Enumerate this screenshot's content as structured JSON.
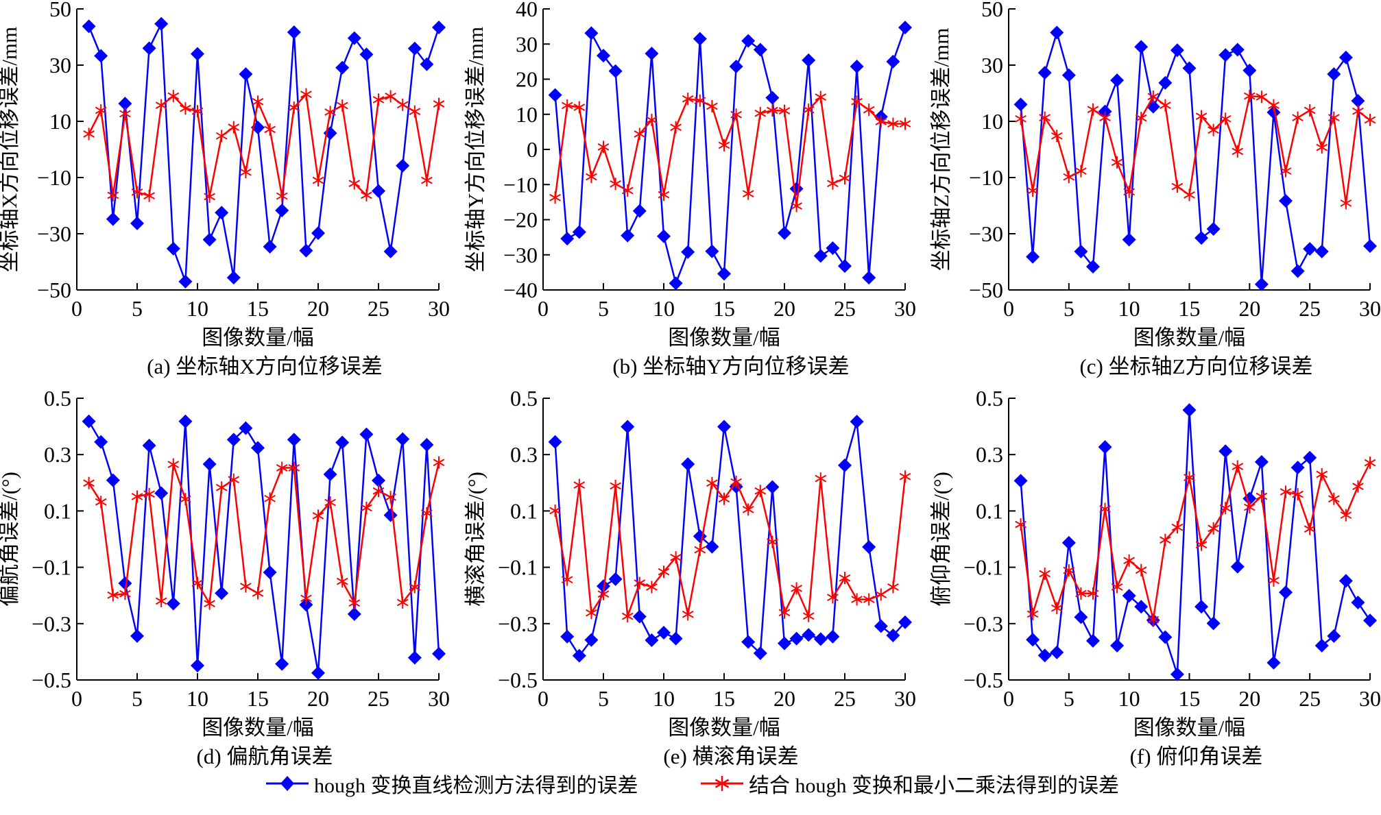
{
  "legend": {
    "series": [
      {
        "name": "hough 变换直线检测方法得到的误差",
        "color": "#0000ff",
        "marker": "diamond"
      },
      {
        "name": "结合 hough 变换和最小二乘法得到的误差",
        "color": "#ff0000",
        "marker": "asterisk"
      }
    ]
  },
  "chart_data": [
    {
      "type": "line",
      "caption": "(a) 坐标轴X方向位移误差",
      "xlabel": "图像数量/幅",
      "ylabel": "坐标轴X方向位移误差/mm",
      "xlim": [
        0,
        30
      ],
      "ylim": [
        -50,
        50
      ],
      "xticks": [
        "0",
        "5",
        "10",
        "15",
        "20",
        "25",
        "30"
      ],
      "yticks": [
        "50",
        "30",
        "10",
        "−10",
        "−30",
        "−50"
      ],
      "ytick_values": [
        50,
        30,
        10,
        -10,
        -30,
        -50
      ],
      "x": [
        1,
        2,
        3,
        4,
        5,
        6,
        7,
        8,
        9,
        10,
        11,
        12,
        13,
        14,
        15,
        16,
        17,
        18,
        19,
        20,
        21,
        22,
        23,
        24,
        25,
        26,
        27,
        28,
        29,
        30
      ],
      "series": [
        {
          "name": "hough 变换直线检测方法得到的误差",
          "values": [
            43.8,
            33.3,
            -24.8,
            16.3,
            -26.3,
            36.0,
            44.7,
            -35.3,
            -47.0,
            34.0,
            -32.1,
            -22.5,
            -45.6,
            26.8,
            7.8,
            -34.6,
            -21.7,
            41.7,
            -36.0,
            -29.8,
            5.8,
            29.1,
            39.6,
            33.8,
            -14.8,
            -36.3,
            -5.8,
            35.9,
            30.3,
            43.4
          ]
        },
        {
          "name": "结合 hough 变换和最小二乘法得到的误差",
          "values": [
            5.5,
            13.9,
            -16.3,
            12.7,
            -15.2,
            -16.5,
            15.7,
            19.0,
            14.6,
            13.6,
            -16.8,
            4.8,
            7.9,
            -8.1,
            17.0,
            7.1,
            -16.6,
            14.9,
            19.6,
            -11.0,
            13.3,
            15.6,
            -12.1,
            -16.3,
            17.7,
            18.9,
            15.9,
            13.5,
            -11.0,
            16.2
          ]
        }
      ]
    },
    {
      "type": "line",
      "caption": "(b) 坐标轴Y方向位移误差",
      "xlabel": "图像数量/幅",
      "ylabel": "坐标轴Y方向位移误差/mm",
      "xlim": [
        0,
        30
      ],
      "ylim": [
        -40,
        40
      ],
      "xticks": [
        "0",
        "5",
        "10",
        "15",
        "20",
        "25",
        "30"
      ],
      "yticks": [
        "40",
        "30",
        "20",
        "10",
        "0",
        "−10",
        "−20",
        "−30",
        "−40"
      ],
      "ytick_values": [
        40,
        30,
        20,
        10,
        0,
        -10,
        -20,
        -30,
        -40
      ],
      "x": [
        1,
        2,
        3,
        4,
        5,
        6,
        7,
        8,
        9,
        10,
        11,
        12,
        13,
        14,
        15,
        16,
        17,
        18,
        19,
        20,
        21,
        22,
        23,
        24,
        25,
        26,
        27,
        28,
        29,
        30
      ],
      "series": [
        {
          "name": "hough 变换直线检测方法得到的误差",
          "values": [
            15.5,
            -25.4,
            -23.5,
            33.1,
            26.7,
            22.3,
            -24.5,
            -17.5,
            27.3,
            -24.7,
            -38.1,
            -29.2,
            31.5,
            -29.0,
            -35.4,
            23.6,
            30.9,
            28.4,
            14.7,
            -23.8,
            -11.2,
            25.4,
            -30.3,
            -28.1,
            -33.2,
            23.6,
            -36.5,
            9.3,
            25.0,
            34.7
          ]
        },
        {
          "name": "结合 hough 变换和最小二乘法得到的误差",
          "values": [
            -13.7,
            12.5,
            12.0,
            -7.8,
            0.7,
            -9.8,
            -11.7,
            4.4,
            8.4,
            -12.9,
            6.3,
            14.4,
            13.9,
            12.3,
            1.2,
            9.9,
            -12.6,
            10.3,
            11.1,
            11.0,
            -16.1,
            11.3,
            14.9,
            -9.7,
            -8.2,
            13.6,
            11.3,
            7.9,
            7.3,
            7.3
          ]
        }
      ]
    },
    {
      "type": "line",
      "caption": "(c) 坐标轴Z方向位移误差",
      "xlabel": "图像数量/幅",
      "ylabel": "坐标轴Z方向位移误差/mm",
      "xlim": [
        0,
        30
      ],
      "ylim": [
        -50,
        50
      ],
      "xticks": [
        "0",
        "5",
        "10",
        "15",
        "20",
        "25",
        "30"
      ],
      "yticks": [
        "50",
        "30",
        "10",
        "−10",
        "−30",
        "−50"
      ],
      "ytick_values": [
        50,
        30,
        10,
        -10,
        -30,
        -50
      ],
      "x": [
        1,
        2,
        3,
        4,
        5,
        6,
        7,
        8,
        9,
        10,
        11,
        12,
        13,
        14,
        15,
        16,
        17,
        18,
        19,
        20,
        21,
        22,
        23,
        24,
        25,
        26,
        27,
        28,
        29,
        30
      ],
      "series": [
        {
          "name": "hough 变换直线检测方法得到的误差",
          "values": [
            16.0,
            -38.2,
            27.3,
            41.6,
            26.4,
            -36.3,
            -41.7,
            13.5,
            24.6,
            -32.1,
            36.5,
            15.2,
            23.7,
            35.3,
            28.9,
            -31.5,
            -28.3,
            33.6,
            35.5,
            28.1,
            -48.0,
            13.2,
            -18.3,
            -43.3,
            -35.4,
            -36.3,
            26.8,
            32.7,
            17.3,
            -34.4
          ]
        },
        {
          "name": "结合 hough 变换和最小二乘法得到的误差",
          "values": [
            10.9,
            -14.7,
            11.3,
            4.8,
            -9.8,
            -7.7,
            14.2,
            11.3,
            -4.6,
            -15.1,
            11.2,
            18.8,
            15.7,
            -13.2,
            -16.2,
            11.8,
            6.9,
            10.9,
            -0.7,
            19.0,
            18.7,
            15.7,
            -7.7,
            11.3,
            13.9,
            0.7,
            11.3,
            -19.1,
            13.6,
            10.5
          ]
        }
      ]
    },
    {
      "type": "line",
      "caption": "(d) 偏航角误差",
      "xlabel": "图像数量/幅",
      "ylabel": "偏航角误差/(°)",
      "xlim": [
        0,
        30
      ],
      "ylim": [
        -0.5,
        0.5
      ],
      "xticks": [
        "0",
        "5",
        "10",
        "15",
        "20",
        "25",
        "30"
      ],
      "yticks": [
        "0.5",
        "0.3",
        "0.1",
        "−0.1",
        "−0.3",
        "−0.5"
      ],
      "ytick_values": [
        0.5,
        0.3,
        0.1,
        -0.1,
        -0.3,
        -0.5
      ],
      "x": [
        1,
        2,
        3,
        4,
        5,
        6,
        7,
        8,
        9,
        10,
        11,
        12,
        13,
        14,
        15,
        16,
        17,
        18,
        19,
        20,
        21,
        22,
        23,
        24,
        25,
        26,
        27,
        28,
        29,
        30
      ],
      "series": [
        {
          "name": "hough 变换直线检测方法得到的误差",
          "values": [
            0.418,
            0.345,
            0.209,
            -0.157,
            -0.344,
            0.332,
            0.163,
            -0.229,
            0.418,
            -0.449,
            0.266,
            -0.192,
            0.353,
            0.394,
            0.324,
            -0.118,
            -0.443,
            0.353,
            -0.233,
            -0.475,
            0.23,
            0.343,
            -0.266,
            0.372,
            0.208,
            0.085,
            0.355,
            -0.421,
            0.335,
            -0.407
          ]
        },
        {
          "name": "结合 hough 变换和最小二乘法得到的误差",
          "values": [
            0.199,
            0.132,
            -0.199,
            -0.194,
            0.151,
            0.16,
            -0.22,
            0.265,
            0.142,
            -0.156,
            -0.229,
            0.183,
            0.211,
            -0.168,
            -0.192,
            0.144,
            0.253,
            0.253,
            -0.21,
            0.083,
            0.13,
            -0.15,
            -0.227,
            0.111,
            0.171,
            0.149,
            -0.225,
            -0.17,
            0.092,
            0.272
          ]
        }
      ]
    },
    {
      "type": "line",
      "caption": "(e) 横滚角误差",
      "xlabel": "图像数量/幅",
      "ylabel": "横滚角误差/(°)",
      "xlim": [
        0,
        30
      ],
      "ylim": [
        -0.5,
        0.5
      ],
      "xticks": [
        "0",
        "5",
        "10",
        "15",
        "20",
        "25",
        "30"
      ],
      "yticks": [
        "0.5",
        "0.3",
        "0.1",
        "−0.1",
        "−0.3",
        "−0.5"
      ],
      "ytick_values": [
        0.5,
        0.3,
        0.1,
        -0.1,
        -0.3,
        -0.5
      ],
      "x": [
        1,
        2,
        3,
        4,
        5,
        6,
        7,
        8,
        9,
        10,
        11,
        12,
        13,
        14,
        15,
        16,
        17,
        18,
        19,
        20,
        21,
        22,
        23,
        24,
        25,
        26,
        27,
        28,
        29,
        30
      ],
      "series": [
        {
          "name": "hough 变换直线检测方法得到的误差",
          "values": [
            0.345,
            -0.346,
            -0.414,
            -0.358,
            -0.167,
            -0.142,
            0.399,
            -0.275,
            -0.359,
            -0.332,
            -0.353,
            0.266,
            0.01,
            -0.027,
            0.399,
            0.186,
            -0.365,
            -0.405,
            0.185,
            -0.37,
            -0.353,
            -0.34,
            -0.355,
            -0.346,
            0.262,
            0.417,
            -0.028,
            -0.309,
            -0.342,
            -0.295
          ]
        },
        {
          "name": "结合 hough 变换和最小二乘法得到的误差",
          "values": [
            0.101,
            -0.144,
            0.192,
            -0.262,
            -0.195,
            0.189,
            -0.274,
            -0.156,
            -0.17,
            -0.116,
            -0.065,
            -0.267,
            -0.038,
            0.199,
            0.143,
            0.203,
            0.105,
            0.171,
            -0.01,
            -0.261,
            -0.175,
            -0.273,
            0.215,
            -0.207,
            -0.138,
            -0.214,
            -0.214,
            -0.197,
            -0.17,
            0.222
          ]
        }
      ]
    },
    {
      "type": "line",
      "caption": "(f) 俯仰角误差",
      "xlabel": "图像数量/幅",
      "ylabel": "俯仰角误差/(°)",
      "xlim": [
        0,
        30
      ],
      "ylim": [
        -0.5,
        0.5
      ],
      "xticks": [
        "0",
        "5",
        "10",
        "15",
        "20",
        "25",
        "30"
      ],
      "yticks": [
        "0.5",
        "0.3",
        "0.1",
        "−0.1",
        "−0.3",
        "−0.5"
      ],
      "ytick_values": [
        0.5,
        0.3,
        0.1,
        -0.1,
        -0.3,
        -0.5
      ],
      "x": [
        1,
        2,
        3,
        4,
        5,
        6,
        7,
        8,
        9,
        10,
        11,
        12,
        13,
        14,
        15,
        16,
        17,
        18,
        19,
        20,
        21,
        22,
        23,
        24,
        25,
        26,
        27,
        28,
        29,
        30
      ],
      "series": [
        {
          "name": "hough 变换直线检测方法得到的误差",
          "values": [
            0.207,
            -0.357,
            -0.413,
            -0.402,
            -0.013,
            -0.277,
            -0.361,
            0.327,
            -0.378,
            -0.201,
            -0.24,
            -0.288,
            -0.348,
            -0.48,
            0.458,
            -0.24,
            -0.299,
            0.312,
            -0.098,
            0.144,
            0.274,
            -0.439,
            -0.189,
            0.254,
            0.289,
            -0.378,
            -0.344,
            -0.148,
            -0.225,
            -0.289
          ]
        },
        {
          "name": "结合 hough 变换和最小二乘法得到的误差",
          "values": [
            0.052,
            -0.266,
            -0.123,
            -0.245,
            -0.111,
            -0.193,
            -0.193,
            0.107,
            -0.17,
            -0.076,
            -0.11,
            -0.286,
            -0.003,
            0.042,
            0.219,
            -0.02,
            0.038,
            0.11,
            0.258,
            0.113,
            0.152,
            -0.147,
            0.168,
            0.159,
            0.036,
            0.23,
            0.143,
            0.085,
            0.187,
            0.271
          ]
        }
      ]
    }
  ]
}
